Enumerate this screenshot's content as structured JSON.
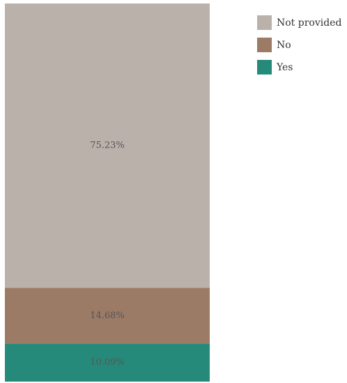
{
  "chart_data": {
    "type": "bar",
    "stacked": true,
    "orientation": "vertical",
    "categories": [
      ""
    ],
    "series": [
      {
        "name": "Yes",
        "values": [
          10.09
        ],
        "label": "10.09%",
        "color": "#268a7b"
      },
      {
        "name": "No",
        "values": [
          14.68
        ],
        "label": "14.68%",
        "color": "#9b7b66"
      },
      {
        "name": "Not provided",
        "values": [
          75.23
        ],
        "label": "75.23%",
        "color": "#bbb1ab"
      }
    ],
    "ylim": [
      0,
      100
    ],
    "grid": false,
    "axes_visible": false,
    "legend": {
      "position": "top-right",
      "order": [
        "Not provided",
        "No",
        "Yes"
      ]
    }
  }
}
